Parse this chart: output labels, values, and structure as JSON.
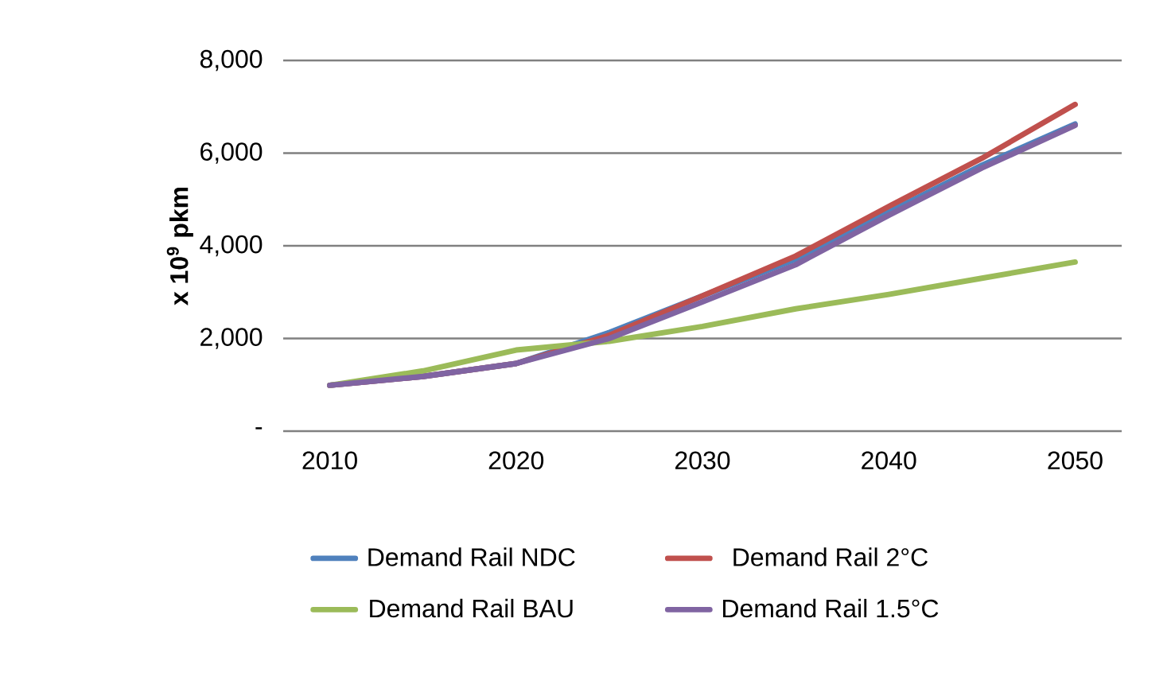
{
  "chart_data": {
    "type": "line",
    "ylabel": "x 10$^{9}$ pkm",
    "x": [
      2010,
      2015,
      2020,
      2025,
      2030,
      2035,
      2040,
      2045,
      2050
    ],
    "xlim": [
      2007.5,
      2052.5
    ],
    "xticks": [
      2010,
      2020,
      2030,
      2040,
      2050
    ],
    "ylim": [
      0,
      8000
    ],
    "yticks": [
      {
        "value": 0,
        "label": "-"
      },
      {
        "value": 2000,
        "label": "2,000"
      },
      {
        "value": 4000,
        "label": "4,000"
      },
      {
        "value": 6000,
        "label": "6,000"
      },
      {
        "value": 8000,
        "label": "8,000"
      }
    ],
    "grid": "y",
    "legend": "bottom",
    "marker": "none",
    "line_style": "solid",
    "series": [
      {
        "name": "Demand Rail NDC",
        "color": "#4f81bd",
        "values": [
          990,
          1180,
          1460,
          2130,
          2920,
          3710,
          4730,
          5740,
          6630
        ]
      },
      {
        "name": "Demand Rail 2°C",
        "color": "#c0504d",
        "values": [
          990,
          1180,
          1460,
          2070,
          2920,
          3780,
          4850,
          5890,
          7050
        ]
      },
      {
        "name": "Demand Rail BAU",
        "color": "#9bbb59",
        "values": [
          990,
          1300,
          1750,
          1940,
          2260,
          2640,
          2950,
          3300,
          3650
        ]
      },
      {
        "name": "Demand Rail 1.5°C",
        "color": "#8064a2",
        "values": [
          990,
          1180,
          1460,
          2000,
          2790,
          3590,
          4660,
          5680,
          6600
        ]
      }
    ]
  }
}
